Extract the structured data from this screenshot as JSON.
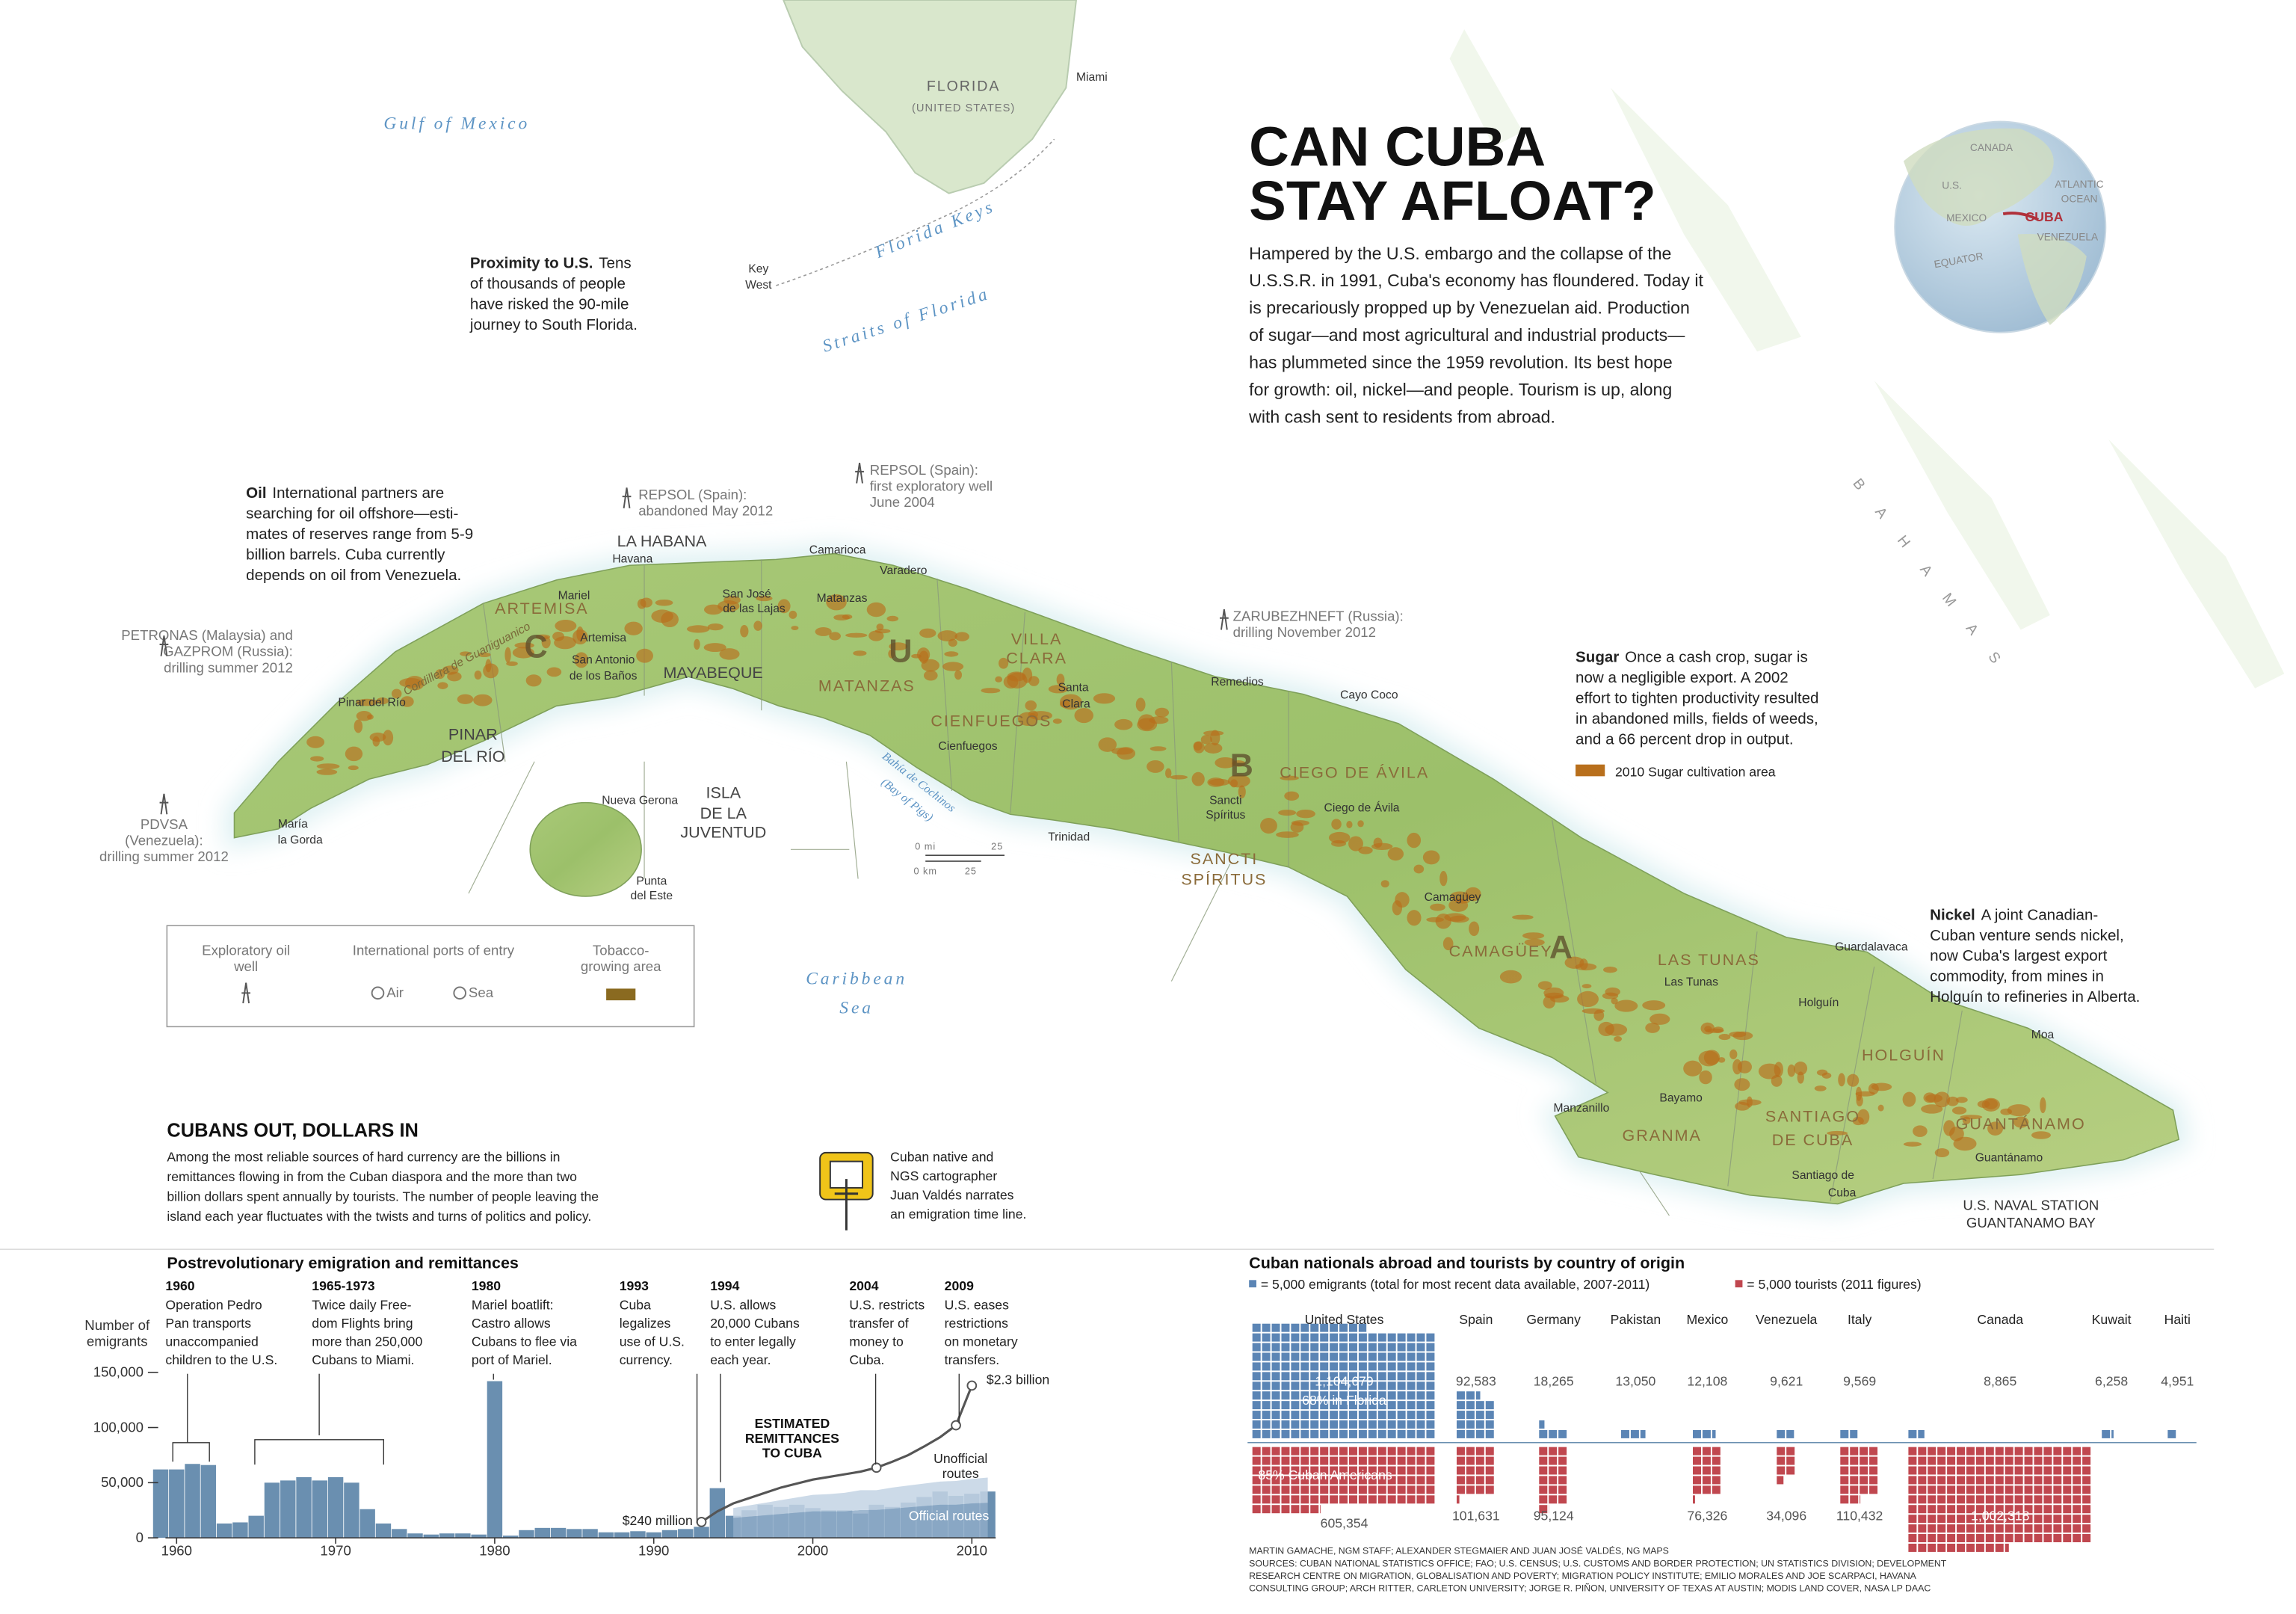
{
  "header": {
    "title_lines": [
      "CAN CUBA",
      "STAY AFLOAT?"
    ],
    "intro_lines": [
      "Hampered by the U.S. embargo and the collapse of the",
      "U.S.S.R. in 1991, Cuba's economy has floundered. Today it",
      "is precariously propped up by Venezuelan aid. Production",
      "of sugar—and most agricultural and industrial products—",
      "has plummeted since the 1959 revolution. Its best hope",
      "for growth: oil, nickel—and people. Tourism is up, along",
      "with cash sent to residents from abroad."
    ]
  },
  "globe": {
    "labels": [
      "CANADA",
      "U.S.",
      "ATLANTIC",
      "OCEAN",
      "MEXICO",
      "CUBA",
      "VENEZUELA",
      "EQUATOR"
    ]
  },
  "map": {
    "places": [
      "Gulf of Mexico",
      "FLORIDA",
      "(UNITED STATES)",
      "Miami",
      "Key",
      "West",
      "Florida Keys",
      "Straits of Florida",
      "BAHAMAS",
      "Caribbean",
      "Sea",
      "LA HABANA",
      "Havana",
      "ARTEMISA",
      "MAYABEQUE",
      "PINAR",
      "DEL RÍO",
      "ISLA",
      "DE LA",
      "JUVENTUD",
      "MATANZAS",
      "CIENFUEGOS",
      "VILLA",
      "CLARA",
      "SANCTI",
      "SPÍRITUS",
      "CIEGO DE ÁVILA",
      "CAMAGÜEY",
      "LAS TUNAS",
      "HOLGUÍN",
      "GRANMA",
      "SANTIAGO",
      "DE CUBA",
      "GUANTÁNAMO",
      "C",
      "U",
      "B",
      "A",
      "Mariel",
      "Artemisa",
      "San Antonio",
      "de los Baños",
      "San José",
      "de las Lajas",
      "Matanzas",
      "Camarioca",
      "Varadero",
      "Pinar del Río",
      "María",
      "la Gorda",
      "Nueva Gerona",
      "Punta",
      "del Este",
      "Cienfuegos",
      "Santa",
      "Clara",
      "Remedios",
      "Cayo Coco",
      "Trinidad",
      "Sancti",
      "Spíritus",
      "Ciego de Ávila",
      "Camagüey",
      "Las Tunas",
      "Holguín",
      "Guardalavaca",
      "Moa",
      "Bayamo",
      "Manzanillo",
      "Santiago de",
      "Cuba",
      "Guantánamo",
      "U.S. NAVAL STATION",
      "GUANTANAMO BAY",
      "Cordillera de Guaniguanico",
      "Bahía de Cochinos",
      "(Bay of Pigs)"
    ],
    "wells": [
      {
        "lines": [
          "REPSOL (Spain):",
          "abandoned May 2012"
        ]
      },
      {
        "lines": [
          "REPSOL (Spain):",
          "first exploratory well",
          "June 2004"
        ]
      },
      {
        "lines": [
          "ZARUBEZHNEFT (Russia):",
          "drilling November 2012"
        ]
      },
      {
        "lines": [
          "PETRONAS (Malaysia) and",
          "GAZPROM (Russia):",
          "drilling summer 2012"
        ]
      },
      {
        "lines": [
          "PDVSA",
          "(Venezuela):",
          "drilling summer 2012"
        ]
      }
    ],
    "scale": [
      "0 mi",
      "25",
      "0 km",
      "25"
    ],
    "legend": {
      "well": [
        "Exploratory oil",
        "well"
      ],
      "ports": "International ports of entry",
      "air": "Air",
      "sea": "Sea",
      "tobacco": [
        "Tobacco-",
        "growing area"
      ]
    }
  },
  "notes": [
    {
      "head": "Proximity to U.S.",
      "body": [
        "Tens",
        "of thousands of people",
        "have risked the 90-mile",
        "journey to South Florida."
      ]
    },
    {
      "head": "Oil",
      "body": [
        "International partners are",
        "searching for oil offshore—esti-",
        "mates of reserves range from 5-9",
        "billion barrels. Cuba currently",
        "depends on oil from Venezuela."
      ]
    },
    {
      "head": "Sugar",
      "body": [
        "Once a cash crop, sugar is",
        "now a negligible export. A 2002",
        "effort to tighten productivity resulted",
        "in abandoned mills, fields of weeds,",
        "and a 66 percent drop in output."
      ]
    },
    {
      "head": "Nickel",
      "body": [
        "A joint Canadian-",
        "Cuban venture sends nickel,",
        "now Cuba's largest export",
        "commodity, from mines in",
        "Holguín to refineries in Alberta."
      ]
    }
  ],
  "sugar_legend": "2010 Sugar cultivation area",
  "section": {
    "title": "CUBANS OUT, DOLLARS IN",
    "body": [
      "Among the most reliable sources of hard currency are the billions in",
      "remittances flowing in from the Cuban diaspora and the more than two",
      "billion dollars spent annually by tourists. The number of people leaving the",
      "island each year fluctuates with the twists and turns of politics and policy."
    ],
    "video": [
      "Cuban native and",
      "NGS cartographer",
      "Juan Valdés narrates",
      "an emigration time line."
    ]
  },
  "chart_data": [
    {
      "type": "bar",
      "title": "Postrevolutionary emigration and remittances",
      "y_label": [
        "Number of",
        "emigrants"
      ],
      "x": [
        1959,
        1960,
        1961,
        1962,
        1963,
        1964,
        1965,
        1966,
        1967,
        1968,
        1969,
        1970,
        1971,
        1972,
        1973,
        1974,
        1975,
        1976,
        1977,
        1978,
        1979,
        1980,
        1981,
        1982,
        1983,
        1984,
        1985,
        1986,
        1987,
        1988,
        1989,
        1990,
        1991,
        1992,
        1993,
        1994,
        1995,
        1996,
        1997,
        1998,
        1999,
        2000,
        2001,
        2002,
        2003,
        2004,
        2005,
        2006,
        2007,
        2008,
        2009,
        2010,
        2011
      ],
      "values": [
        62000,
        62000,
        67000,
        66000,
        13000,
        14000,
        20000,
        50000,
        52000,
        55000,
        52000,
        55000,
        50000,
        26000,
        13000,
        8000,
        4000,
        3000,
        4000,
        4000,
        3000,
        142000,
        2000,
        7000,
        9000,
        9000,
        8000,
        8000,
        5000,
        5000,
        6000,
        5000,
        7000,
        8000,
        10000,
        45000,
        20000,
        25000,
        30000,
        28000,
        30000,
        27000,
        25000,
        25000,
        22000,
        30000,
        28000,
        32000,
        37000,
        42000,
        38000,
        40000,
        42000
      ],
      "color": "#6a8fb0",
      "xlim": [
        1959.3,
        2011.5
      ],
      "xticks": [
        1960,
        1970,
        1980,
        1990,
        2000,
        2010
      ],
      "ylim": [
        0,
        150000
      ],
      "yticks": [
        0,
        {
          "value": 50000,
          "label": "50,000"
        },
        {
          "value": 100000,
          "label": "100,000"
        },
        {
          "value": 150000,
          "label": "150,000"
        }
      ],
      "y2lim": [
        0,
        2500
      ],
      "line": {
        "name": "ESTIMATED REMITTANCES TO CUBA",
        "axis": "y2",
        "color": "#555555",
        "x": [
          1993,
          1994,
          1995,
          1996,
          1997,
          1998,
          1999,
          2000,
          2001,
          2002,
          2003,
          2004,
          2005,
          2006,
          2007,
          2008,
          2009,
          2010
        ],
        "values": [
          240,
          400,
          520,
          600,
          680,
          760,
          820,
          880,
          920,
          960,
          1000,
          1060,
          1150,
          1250,
          1380,
          1520,
          1700,
          2300
        ],
        "value_labels": [
          "$240 million",
          null,
          null,
          null,
          null,
          null,
          null,
          null,
          null,
          null,
          null,
          null,
          null,
          null,
          null,
          null,
          null,
          "$2.3 billion"
        ]
      },
      "areas": {
        "x": [
          1995,
          1996,
          1997,
          1998,
          1999,
          2000,
          2001,
          2002,
          2003,
          2004,
          2005,
          2006,
          2007,
          2008,
          2009,
          2010,
          2011
        ],
        "series": [
          {
            "name": "Official routes",
            "axis": "y2",
            "color": "#8eabc8",
            "values": [
              300,
              320,
              340,
              360,
              380,
              400,
              400,
              400,
              420,
              420,
              440,
              460,
              480,
              500,
              500,
              520,
              530
            ]
          },
          {
            "name": "Unofficial routes",
            "axis": "y2",
            "color": "#c3d4e4",
            "values": [
              150,
              170,
              190,
              210,
              230,
              250,
              260,
              280,
              300,
              300,
              320,
              330,
              340,
              350,
              360,
              370,
              380
            ]
          }
        ]
      },
      "events": [
        {
          "year": "1960",
          "lines": [
            "Operation Pedro",
            "Pan transports",
            "unaccompanied",
            "children to the U.S."
          ]
        },
        {
          "year": "1965-1973",
          "lines": [
            "Twice daily Free-",
            "dom Flights bring",
            "more than 250,000",
            "Cubans to Miami."
          ]
        },
        {
          "year": "1980",
          "lines": [
            "Mariel boatlift:",
            "Castro allows",
            "Cubans to flee via",
            "port of Mariel."
          ]
        },
        {
          "year": "1993",
          "lines": [
            "Cuba",
            "legalizes",
            "use of U.S.",
            "currency."
          ]
        },
        {
          "year": "1994",
          "lines": [
            "U.S. allows",
            "20,000 Cubans",
            "to enter legally",
            "each year."
          ]
        },
        {
          "year": "2004",
          "lines": [
            "U.S. restricts",
            "transfer of",
            "money to",
            "Cuba."
          ]
        },
        {
          "year": "2009",
          "lines": [
            "U.S. eases",
            "restrictions",
            "on monetary",
            "transfers."
          ]
        }
      ]
    },
    {
      "type": "waffle",
      "title": "Cuban nationals abroad and tourists by country of origin",
      "unit": 5000,
      "categories": [
        "United States",
        "Spain",
        "Germany",
        "Pakistan",
        "Mexico",
        "Venezuela",
        "Italy",
        "Canada",
        "Kuwait",
        "Haiti"
      ],
      "series": [
        {
          "name": "= 5,000 emigrants (total for most recent data available, 2007-2011)",
          "color": "#5b85b5",
          "values": [
            1104679,
            92583,
            18265,
            13050,
            12108,
            9621,
            9569,
            8865,
            6258,
            4951
          ],
          "value_labels": [
            "1,104,679",
            "92,583",
            "18,265",
            "13,050",
            "12,108",
            "9,621",
            "9,569",
            "8,865",
            "6,258",
            "4,951"
          ]
        },
        {
          "name": "= 5,000 tourists (2011 figures)",
          "color": "#c0474f",
          "values": [
            605354,
            101631,
            95124,
            null,
            76326,
            34096,
            110432,
            1002318,
            null,
            null
          ],
          "value_labels": [
            "605,354",
            "101,631",
            "95,124",
            null,
            "76,326",
            "34,096",
            "110,432",
            "1,002,318",
            null,
            null
          ]
        }
      ],
      "annotations": [
        "68% in Florida",
        "85% Cuban Americans"
      ]
    }
  ],
  "credits": [
    "MARTIN GAMACHE, NGM STAFF; ALEXANDER STEGMAIER AND JUAN JOSÉ VALDÉS, NG MAPS",
    "SOURCES: CUBAN NATIONAL STATISTICS OFFICE; FAO; U.S. CENSUS; U.S. CUSTOMS AND BORDER PROTECTION; UN STATISTICS DIVISION; DEVELOPMENT",
    "RESEARCH CENTRE ON MIGRATION, GLOBALISATION AND POVERTY; MIGRATION POLICY INSTITUTE; EMILIO MORALES AND JOE SCARPACI, HAVANA",
    "CONSULTING GROUP; ARCH RITTER, CARLETON UNIVERSITY; JORGE R. PIÑON, UNIVERSITY OF TEXAS AT AUSTIN; MODIS LAND COVER, NASA LP DAAC"
  ]
}
